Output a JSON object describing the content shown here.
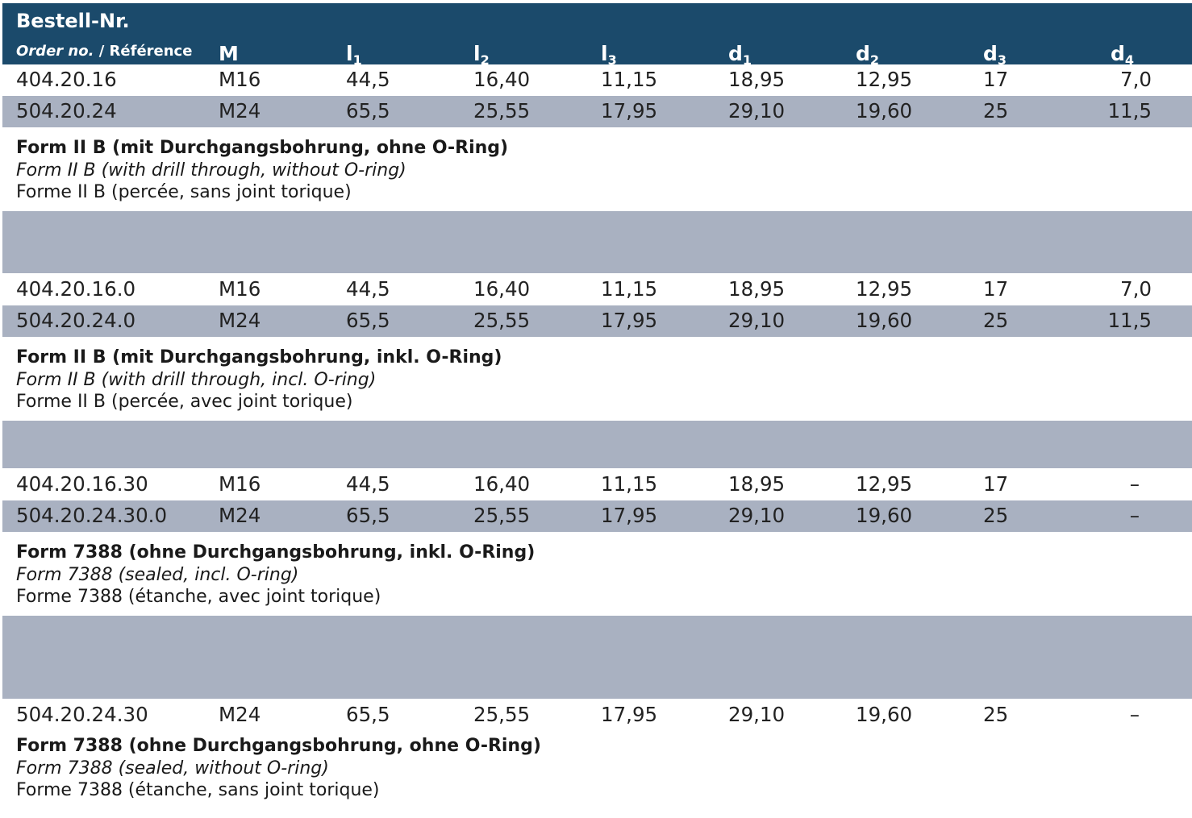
{
  "header": {
    "title": "Bestell-Nr.",
    "subtitle_en": "Order no.",
    "subtitle_sep": " / ",
    "subtitle_fr": "Référence",
    "columns": {
      "m": "M",
      "l1_base": "l",
      "l1_sub": "1",
      "l2_base": "l",
      "l2_sub": "2",
      "l3_base": "l",
      "l3_sub": "3",
      "d1_base": "d",
      "d1_sub": "1",
      "d2_base": "d",
      "d2_sub": "2",
      "d3_base": "d",
      "d3_sub": "3",
      "d4_base": "d",
      "d4_sub": "4"
    }
  },
  "rows": [
    {
      "order": "404.20.16",
      "m": "M16",
      "l1": "44,5",
      "l2": "16,40",
      "l3": "11,15",
      "d1": "18,95",
      "d2": "12,95",
      "d3": "17",
      "d4": "7,0"
    },
    {
      "order": "504.20.24",
      "m": "M24",
      "l1": "65,5",
      "l2": "25,55",
      "l3": "17,95",
      "d1": "29,10",
      "d2": "19,60",
      "d3": "25",
      "d4": "11,5"
    },
    {
      "order": "404.20.16.0",
      "m": "M16",
      "l1": "44,5",
      "l2": "16,40",
      "l3": "11,15",
      "d1": "18,95",
      "d2": "12,95",
      "d3": "17",
      "d4": "7,0"
    },
    {
      "order": "504.20.24.0",
      "m": "M24",
      "l1": "65,5",
      "l2": "25,55",
      "l3": "17,95",
      "d1": "29,10",
      "d2": "19,60",
      "d3": "25",
      "d4": "11,5"
    },
    {
      "order": "404.20.16.30",
      "m": "M16",
      "l1": "44,5",
      "l2": "16,40",
      "l3": "11,15",
      "d1": "18,95",
      "d2": "12,95",
      "d3": "17",
      "d4": "–"
    },
    {
      "order": "504.20.24.30.0",
      "m": "M24",
      "l1": "65,5",
      "l2": "25,55",
      "l3": "17,95",
      "d1": "29,10",
      "d2": "19,60",
      "d3": "25",
      "d4": "–"
    },
    {
      "order": "504.20.24.30",
      "m": "M24",
      "l1": "65,5",
      "l2": "25,55",
      "l3": "17,95",
      "d1": "29,10",
      "d2": "19,60",
      "d3": "25",
      "d4": "–"
    }
  ],
  "captions": [
    {
      "de": "Form II B (mit Durchgangsbohrung, ohne O-Ring)",
      "en": "Form II B (with drill through, without O-ring)",
      "fr": "Forme II B (percée, sans joint torique)"
    },
    {
      "de": "Form II B (mit Durchgangsbohrung, inkl. O-Ring)",
      "en": "Form II B (with drill through, incl. O-ring)",
      "fr": "Forme II B (percée, avec joint torique)"
    },
    {
      "de": "Form 7388 (ohne Durchgangsbohrung, inkl. O-Ring)",
      "en": "Form 7388 (sealed, incl. O-ring)",
      "fr": "Forme 7388 (étanche, avec joint torique)"
    },
    {
      "de": "Form 7388 (ohne Durchgangsbohrung, ohne O-Ring)",
      "en": "Form 7388 (sealed, without O-ring)",
      "fr": "Forme 7388 (étanche, sans joint torique)"
    }
  ],
  "colors": {
    "header_bg": "#1b4a6b",
    "row_shade": "#a9b1c1",
    "header_text": "#ffffff"
  }
}
